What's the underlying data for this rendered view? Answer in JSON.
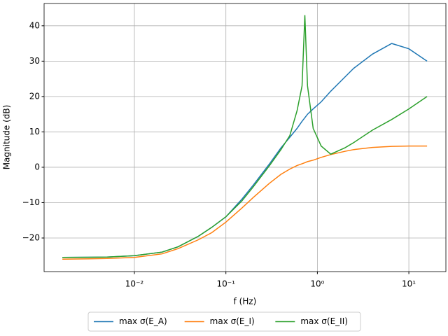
{
  "chart_data": {
    "type": "line",
    "x_label": "f (Hz)",
    "y_label": "Magnitude (dB)",
    "x_scale": "log",
    "grid": true,
    "legend": "lower center outside",
    "x": [
      0.00163,
      0.005,
      0.01,
      0.02,
      0.03,
      0.05,
      0.07,
      0.1,
      0.15,
      0.2,
      0.3,
      0.4,
      0.5,
      0.6,
      0.68,
      0.73,
      0.78,
      0.9,
      1.1,
      1.4,
      2,
      2.5,
      4,
      6.5,
      10,
      15.8
    ],
    "series": [
      {
        "name": "max σ(E_A)",
        "color": "#1f77b4",
        "values": [
          -25.5,
          -25.4,
          -25,
          -24,
          -22.5,
          -19.5,
          -17,
          -14,
          -9,
          -5,
          1,
          5.5,
          8.5,
          11,
          13,
          14,
          15,
          16.5,
          18.5,
          21.5,
          25.5,
          28,
          32,
          35,
          33.5,
          30
        ]
      },
      {
        "name": "max σ(E_I)",
        "color": "#ff7f0e",
        "values": [
          -26,
          -25.8,
          -25.5,
          -24.5,
          -23,
          -20.5,
          -18.5,
          -15.5,
          -11.5,
          -8.5,
          -4.5,
          -2,
          -0.5,
          0.5,
          1,
          1.3,
          1.6,
          2,
          2.8,
          3.6,
          4.5,
          5,
          5.6,
          5.9,
          6,
          6
        ]
      },
      {
        "name": "max σ(E_II)",
        "color": "#2ca02c",
        "values": [
          -25.5,
          -25.4,
          -25,
          -24,
          -22.5,
          -19.5,
          -17,
          -14,
          -9.5,
          -5.5,
          0.5,
          5,
          9,
          16,
          23,
          43,
          23,
          11,
          6,
          3.7,
          5.5,
          7,
          10.5,
          13.5,
          16.5,
          20
        ]
      }
    ],
    "xlim": [
      0.00103,
      25.4
    ],
    "xticks": [
      {
        "value": 0.01,
        "label": "10⁻²"
      },
      {
        "value": 0.1,
        "label": "10⁻¹"
      },
      {
        "value": 1,
        "label": "10⁰"
      },
      {
        "value": 10,
        "label": "10¹"
      }
    ],
    "ylim": [
      -29.5,
      46.3
    ],
    "yticks": [
      {
        "value": -20,
        "label": "−20"
      },
      {
        "value": -10,
        "label": "−10"
      },
      0,
      10,
      20,
      30,
      40
    ]
  }
}
